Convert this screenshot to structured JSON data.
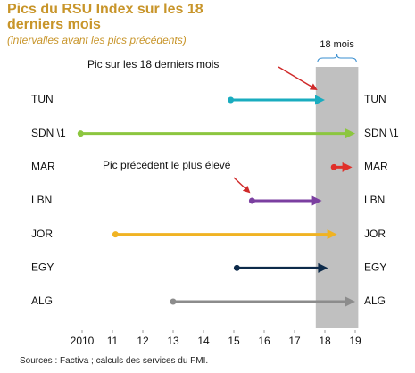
{
  "chart_data": {
    "type": "arrow",
    "title": "Pics du RSU Index sur les 18 derniers mois",
    "subtitle": "(intervalles avant les pics précédents)",
    "source": "Sources : Factiva ; calculs des services du FMI.",
    "annotations": [
      "Pic sur les 18 derniers mois",
      "Pic précédent le plus élevé"
    ],
    "highlight": {
      "label": "18 mois",
      "range": [
        2017.7,
        2019.1
      ]
    },
    "categories": [
      "TUN",
      "SDN \\1",
      "MAR",
      "LBN",
      "JOR",
      "EGY",
      "ALG"
    ],
    "start": [
      2014.9,
      2009.95,
      2018.3,
      2015.6,
      2011.1,
      2015.1,
      2013.0
    ],
    "end": [
      2018.0,
      2019.0,
      2018.9,
      2017.9,
      2018.4,
      2018.1,
      2019.0
    ],
    "colors": [
      "#1aacbf",
      "#8cc63f",
      "#e0302a",
      "#7b3fa0",
      "#f0b323",
      "#0d2a4a",
      "#8c8c8c"
    ],
    "xlim": [
      2010,
      2019
    ],
    "xticks": [
      2010,
      {
        "value": 2011,
        "label": "11"
      },
      {
        "value": 2012,
        "label": "12"
      },
      {
        "value": 2013,
        "label": "13"
      },
      {
        "value": 2014,
        "label": "14"
      },
      {
        "value": 2015,
        "label": "15"
      },
      {
        "value": 2016,
        "label": "16"
      },
      {
        "value": 2017,
        "label": "17"
      },
      {
        "value": 2018,
        "label": "18"
      },
      {
        "value": 2019,
        "label": "19"
      }
    ]
  }
}
